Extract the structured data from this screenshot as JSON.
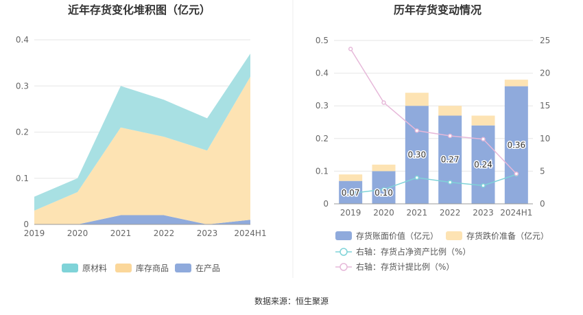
{
  "chart_data": [
    {
      "type": "area",
      "title": "近年存货变化堆积图（亿元）",
      "categories": [
        "2019",
        "2020",
        "2021",
        "2022",
        "2023",
        "2024H1"
      ],
      "ylim": [
        0,
        0.4
      ],
      "yticks": [
        "0",
        "0.1",
        "0.2",
        "0.3",
        "0.4"
      ],
      "stacked": true,
      "series": [
        {
          "name": "在产品",
          "color": "#8faadc",
          "values": [
            0.0,
            0.0,
            0.02,
            0.02,
            0.0,
            0.01
          ]
        },
        {
          "name": "库存商品",
          "color": "#fde3b3",
          "values": [
            0.03,
            0.07,
            0.19,
            0.17,
            0.16,
            0.31
          ]
        },
        {
          "name": "原材料",
          "color": "#a8e0e3",
          "values": [
            0.03,
            0.03,
            0.09,
            0.08,
            0.07,
            0.05
          ]
        }
      ],
      "legend_order": [
        "原材料",
        "库存商品",
        "在产品"
      ],
      "legend_colors": [
        "#7fd3d8",
        "#fbd79a",
        "#8faadc"
      ]
    },
    {
      "type": "bar",
      "title": "历年存货变动情况",
      "categories": [
        "2019",
        "2020",
        "2021",
        "2022",
        "2023",
        "2024H1"
      ],
      "ylim": [
        0,
        0.5
      ],
      "yticks": [
        "0",
        "0.1",
        "0.2",
        "0.3",
        "0.4",
        "0.5"
      ],
      "y2lim": [
        0,
        25
      ],
      "y2ticks": [
        "0",
        "5",
        "10",
        "15",
        "20",
        "25"
      ],
      "bars": [
        {
          "name": "存货账面价值（亿元）",
          "color": "#8faadc",
          "values": [
            0.07,
            0.1,
            0.3,
            0.27,
            0.24,
            0.36
          ],
          "labels": [
            "0.07",
            "0.10",
            "0.30",
            "0.27",
            "0.24",
            "0.36"
          ]
        },
        {
          "name": "存货跌价准备（亿元）",
          "color": "#fde3b3",
          "values": [
            0.02,
            0.02,
            0.04,
            0.03,
            0.03,
            0.02
          ]
        }
      ],
      "lines": [
        {
          "name": "右轴：存货占净资产比例（%）",
          "color": "#7fd3d8",
          "values": [
            1.6,
            2.2,
            4.0,
            3.3,
            2.8,
            4.5
          ]
        },
        {
          "name": "右轴：存货计提比例（%）",
          "color": "#e6b8d9",
          "values": [
            23.7,
            15.5,
            11.2,
            10.4,
            9.9,
            4.6
          ]
        }
      ]
    }
  ],
  "footer": {
    "source": "数据来源：恒生聚源"
  }
}
